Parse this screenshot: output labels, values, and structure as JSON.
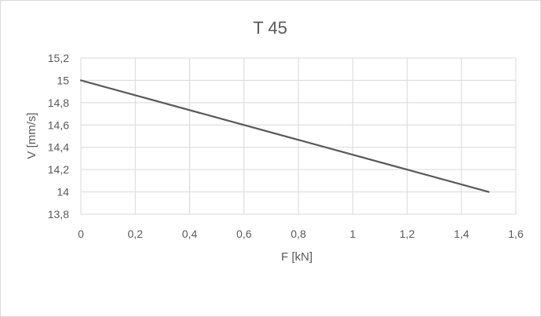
{
  "chart_data": {
    "type": "line",
    "title": "T 45",
    "xlabel": "F [kN]",
    "ylabel": "V  [mm/s]",
    "xlim": [
      0,
      1.6
    ],
    "ylim": [
      13.8,
      15.2
    ],
    "x_ticks": [
      0,
      0.2,
      0.4,
      0.6,
      0.8,
      1,
      1.2,
      1.4,
      1.6
    ],
    "y_ticks": [
      13.8,
      14,
      14.2,
      14.4,
      14.6,
      14.8,
      15,
      15.2
    ],
    "x_tick_labels": [
      "0",
      "0,2",
      "0,4",
      "0,6",
      "0,8",
      "1",
      "1,2",
      "1,4",
      "1,6"
    ],
    "y_tick_labels": [
      "13,8",
      "14",
      "14,2",
      "14,4",
      "14,6",
      "14,8",
      "15",
      "15,2"
    ],
    "grid": true,
    "legend": "none",
    "series": [
      {
        "x": [
          0,
          1.5
        ],
        "y": [
          15,
          14
        ],
        "color": "#595959"
      }
    ]
  }
}
